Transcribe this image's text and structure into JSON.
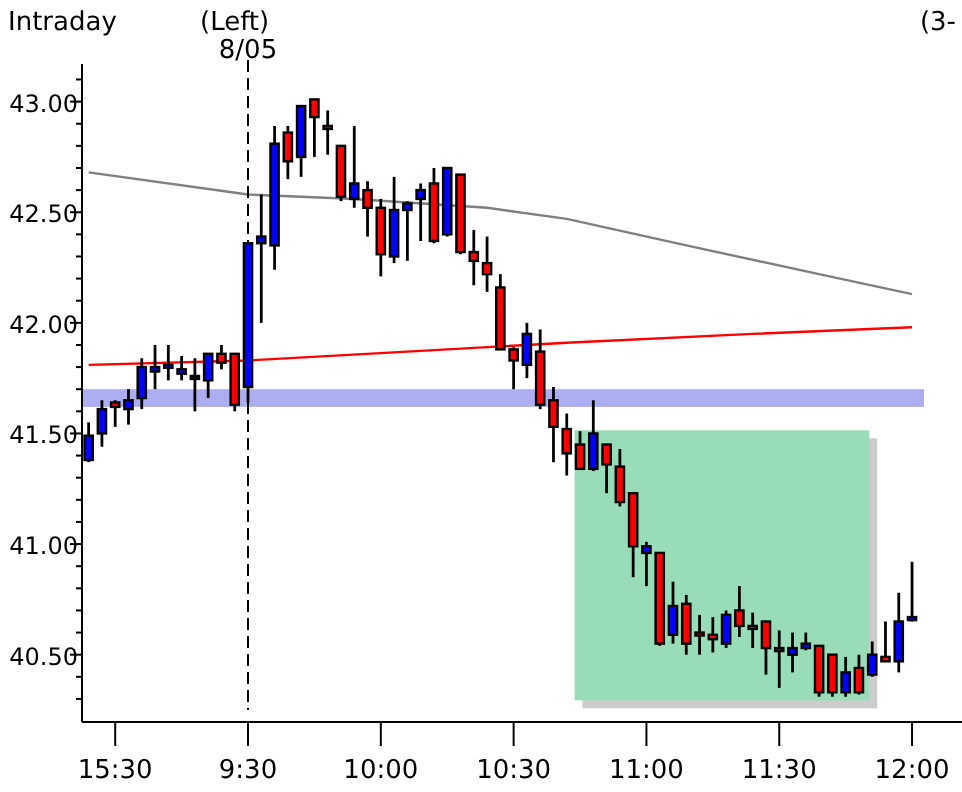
{
  "chart_data": {
    "type": "candlestick",
    "title": "Intraday",
    "annotations": [
      "(Left)",
      "(3-"
    ],
    "categories": [
      null,
      null,
      "15:30",
      null,
      null,
      null,
      null,
      null,
      null,
      null,
      null,
      null,
      "9:30",
      null,
      null,
      null,
      null,
      null,
      null,
      null,
      null,
      null,
      "10:00",
      null,
      null,
      null,
      null,
      null,
      null,
      null,
      null,
      null,
      "10:30",
      null,
      null,
      null,
      null,
      null,
      null,
      null,
      null,
      null,
      "11:00",
      null,
      null,
      null,
      null,
      null,
      null,
      null,
      null,
      null,
      "11:30",
      null,
      null,
      null,
      null,
      null,
      null,
      null,
      null,
      null,
      "12:00"
    ],
    "ohlc": [
      [
        41.38,
        41.55,
        41.37,
        41.49
      ],
      [
        41.5,
        41.65,
        41.44,
        41.61
      ],
      [
        41.64,
        41.65,
        41.53,
        41.62
      ],
      [
        41.61,
        41.7,
        41.54,
        41.65
      ],
      [
        41.66,
        41.84,
        41.61,
        41.8
      ],
      [
        41.78,
        41.9,
        41.7,
        41.8
      ],
      [
        41.8,
        41.9,
        41.74,
        41.81
      ],
      [
        41.77,
        41.85,
        41.74,
        41.79
      ],
      [
        41.75,
        41.84,
        41.6,
        41.76
      ],
      [
        41.74,
        41.86,
        41.66,
        41.86
      ],
      [
        41.86,
        41.9,
        41.79,
        41.82
      ],
      [
        41.86,
        41.86,
        41.6,
        41.63
      ],
      [
        41.71,
        42.36,
        41.64,
        42.36
      ],
      [
        42.36,
        42.58,
        42.0,
        42.39
      ],
      [
        42.35,
        42.89,
        42.24,
        42.81
      ],
      [
        42.86,
        42.89,
        42.65,
        42.73
      ],
      [
        42.75,
        42.98,
        42.66,
        42.98
      ],
      [
        43.01,
        43.01,
        42.75,
        42.93
      ],
      [
        42.89,
        42.96,
        42.76,
        42.88
      ],
      [
        42.8,
        42.8,
        42.55,
        42.57
      ],
      [
        42.56,
        42.89,
        42.52,
        42.63
      ],
      [
        42.6,
        42.64,
        42.39,
        42.52
      ],
      [
        42.52,
        42.56,
        42.21,
        42.31
      ],
      [
        42.3,
        42.66,
        42.27,
        42.51
      ],
      [
        42.51,
        42.55,
        42.28,
        42.54
      ],
      [
        42.56,
        42.63,
        42.37,
        42.6
      ],
      [
        42.63,
        42.7,
        42.36,
        42.37
      ],
      [
        42.4,
        42.7,
        42.39,
        42.7
      ],
      [
        42.67,
        42.67,
        42.31,
        42.32
      ],
      [
        42.32,
        42.42,
        42.17,
        42.28
      ],
      [
        42.27,
        42.39,
        42.14,
        42.22
      ],
      [
        42.16,
        42.22,
        41.88,
        41.88
      ],
      [
        41.88,
        41.89,
        41.7,
        41.83
      ],
      [
        41.81,
        42.0,
        41.75,
        41.95
      ],
      [
        41.87,
        41.97,
        41.61,
        41.63
      ],
      [
        41.65,
        41.71,
        41.37,
        41.53
      ],
      [
        41.52,
        41.59,
        41.31,
        41.41
      ],
      [
        41.45,
        41.51,
        41.34,
        41.34
      ],
      [
        41.34,
        41.65,
        41.33,
        41.5
      ],
      [
        41.45,
        41.45,
        41.23,
        41.36
      ],
      [
        41.35,
        41.43,
        41.17,
        41.19
      ],
      [
        41.23,
        41.23,
        40.85,
        40.99
      ],
      [
        40.96,
        41.01,
        40.81,
        40.99
      ],
      [
        40.96,
        40.96,
        40.54,
        40.55
      ],
      [
        40.59,
        40.83,
        40.55,
        40.72
      ],
      [
        40.73,
        40.77,
        40.5,
        40.55
      ],
      [
        40.6,
        40.68,
        40.5,
        40.59
      ],
      [
        40.59,
        40.67,
        40.51,
        40.57
      ],
      [
        40.55,
        40.7,
        40.53,
        40.68
      ],
      [
        40.7,
        40.81,
        40.58,
        40.63
      ],
      [
        40.63,
        40.69,
        40.53,
        40.62
      ],
      [
        40.65,
        40.65,
        40.41,
        40.53
      ],
      [
        40.53,
        40.61,
        40.35,
        40.52
      ],
      [
        40.5,
        40.6,
        40.42,
        40.53
      ],
      [
        40.53,
        40.6,
        40.52,
        40.55
      ],
      [
        40.54,
        40.54,
        40.31,
        40.33
      ],
      [
        40.5,
        40.5,
        40.31,
        40.33
      ],
      [
        40.33,
        40.49,
        40.31,
        40.42
      ],
      [
        40.44,
        40.5,
        40.32,
        40.33
      ],
      [
        40.41,
        40.56,
        40.4,
        40.5
      ],
      [
        40.49,
        40.65,
        40.47,
        40.47
      ],
      [
        40.47,
        40.78,
        40.42,
        40.65
      ],
      [
        40.66,
        40.92,
        40.65,
        40.67
      ]
    ],
    "colors": [
      "#0000ff",
      "#0000ff",
      "#ff0000",
      "#0000ff",
      "#0000ff",
      "#0000ff",
      "#0000ff",
      "#0000ff",
      "#0000ff",
      "#0000ff",
      "#ff0000",
      "#ff0000",
      "#0000ff",
      "#0000ff",
      "#0000ff",
      "#ff0000",
      "#0000ff",
      "#ff0000",
      "#ff0000",
      "#ff0000",
      "#0000ff",
      "#ff0000",
      "#ff0000",
      "#0000ff",
      "#0000ff",
      "#0000ff",
      "#ff0000",
      "#0000ff",
      "#ff0000",
      "#ff0000",
      "#ff0000",
      "#ff0000",
      "#ff0000",
      "#0000ff",
      "#ff0000",
      "#ff0000",
      "#ff0000",
      "#ff0000",
      "#0000ff",
      "#ff0000",
      "#ff0000",
      "#ff0000",
      "#0000ff",
      "#ff0000",
      "#0000ff",
      "#ff0000",
      "#ff0000",
      "#ff0000",
      "#0000ff",
      "#ff0000",
      "#ff0000",
      "#ff0000",
      "#ff0000",
      "#0000ff",
      "#0000ff",
      "#ff0000",
      "#ff0000",
      "#0000ff",
      "#ff0000",
      "#0000ff",
      "#ff0000",
      "#0000ff",
      "#0000ff"
    ],
    "series": [
      {
        "type": "line",
        "color": "#808080",
        "values": [
          42.68,
          null,
          null,
          null,
          null,
          null,
          null,
          null,
          null,
          null,
          null,
          null,
          42.58,
          null,
          null,
          null,
          null,
          null,
          null,
          null,
          42.56,
          null,
          null,
          null,
          null,
          null,
          null,
          null,
          null,
          null,
          42.52,
          null,
          null,
          null,
          null,
          null,
          42.47,
          null,
          null,
          null,
          null,
          null,
          null,
          null,
          null,
          42.35,
          null,
          null,
          null,
          null,
          null,
          null,
          null,
          null,
          null,
          42.22,
          null,
          null,
          null,
          null,
          null,
          null,
          42.13
        ]
      },
      {
        "type": "line",
        "color": "#ff0000",
        "values": [
          41.81,
          null,
          null,
          null,
          null,
          null,
          null,
          null,
          null,
          null,
          null,
          null,
          41.83,
          null,
          null,
          null,
          null,
          null,
          null,
          null,
          null,
          null,
          null,
          null,
          41.87,
          null,
          null,
          null,
          null,
          null,
          null,
          null,
          null,
          null,
          null,
          null,
          41.91,
          null,
          null,
          null,
          null,
          null,
          null,
          null,
          null,
          null,
          null,
          null,
          null,
          null,
          41.95,
          null,
          null,
          null,
          null,
          null,
          null,
          null,
          null,
          null,
          null,
          null,
          41.98
        ]
      }
    ],
    "ref_lines": [
      {
        "axis": "x",
        "value": "9:30",
        "label": "8/05",
        "line_style": "dashed",
        "color": "#000000"
      }
    ],
    "bands": [
      {
        "axis": "y",
        "from": 41.62,
        "to": 41.7,
        "color": "#9999ee"
      }
    ],
    "ylim": [
      40.25,
      43.17
    ],
    "yticks": [
      {
        "value": 40.3,
        "label": null
      },
      {
        "value": 40.4,
        "label": null
      },
      {
        "value": 40.5,
        "label": "40.50"
      },
      {
        "value": 40.6,
        "label": null
      },
      {
        "value": 40.7,
        "label": null
      },
      {
        "value": 40.8,
        "label": null
      },
      {
        "value": 40.9,
        "label": null
      },
      {
        "value": 41,
        "label": "41.00"
      },
      {
        "value": 41.1,
        "label": null
      },
      {
        "value": 41.2,
        "label": null
      },
      {
        "value": 41.3,
        "label": null
      },
      {
        "value": 41.4,
        "label": null
      },
      {
        "value": 41.5,
        "label": "41.50"
      },
      {
        "value": 41.6,
        "label": null
      },
      {
        "value": 41.7,
        "label": null
      },
      {
        "value": 41.8,
        "label": null
      },
      {
        "value": 41.9,
        "label": null
      },
      {
        "value": 42,
        "label": "42.00"
      },
      {
        "value": 42.1,
        "label": null
      },
      {
        "value": 42.2,
        "label": null
      },
      {
        "value": 42.3,
        "label": null
      },
      {
        "value": 42.4,
        "label": null
      },
      {
        "value": 42.5,
        "label": "42.50"
      },
      {
        "value": 42.6,
        "label": null
      },
      {
        "value": 42.7,
        "label": null
      },
      {
        "value": 42.8,
        "label": null
      },
      {
        "value": 42.9,
        "label": null
      },
      {
        "value": 43,
        "label": "43.00"
      },
      {
        "value": 43.1,
        "label": null
      }
    ],
    "grid": false
  }
}
